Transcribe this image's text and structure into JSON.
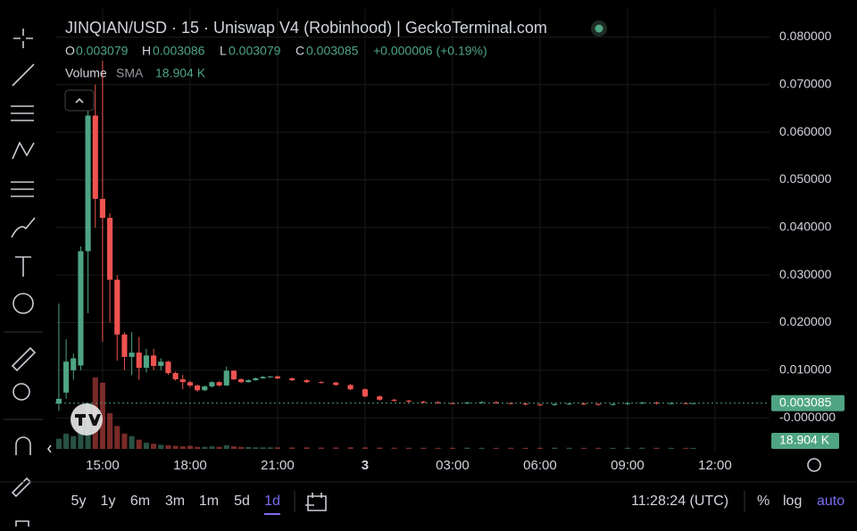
{
  "chart_data": {
    "type": "candlestick",
    "title": "JINQIAN/USD · 15 · Uniswap V4 (Robinhood) | GeckoTerminal.com",
    "up_color": "#4ea483",
    "down_color": "#ef5350",
    "x": [
      13.5,
      13.75,
      14,
      14.25,
      14.5,
      14.75,
      15,
      15.25,
      15.5,
      15.75,
      16,
      16.25,
      16.5,
      16.75,
      17,
      17.25,
      17.5,
      17.75,
      18,
      18.25,
      18.5,
      18.75,
      19,
      19.25,
      19.5,
      19.75,
      20,
      20.25,
      20.5,
      20.75,
      21,
      21.5,
      22,
      22.5,
      23,
      23.5,
      24,
      24.5,
      25,
      25.5,
      26,
      26.5,
      27,
      27.5,
      28,
      28.5,
      29,
      29.5,
      30,
      30.5,
      31,
      31.5,
      32,
      32.5,
      33,
      33.5,
      34,
      34.5,
      35,
      35.25
    ],
    "open": [
      0.003,
      0.0053,
      0.01,
      0.011,
      0.035,
      0.0635,
      0.046,
      0.042,
      0.029,
      0.0175,
      0.0128,
      0.0137,
      0.0105,
      0.0131,
      0.0109,
      0.0118,
      0.0094,
      0.0081,
      0.0075,
      0.0068,
      0.0058,
      0.0066,
      0.0075,
      0.0068,
      0.0099,
      0.0081,
      0.0075,
      0.0079,
      0.0083,
      0.0086,
      0.0087,
      0.0083,
      0.0079,
      0.0075,
      0.0074,
      0.0069,
      0.006,
      0.0045,
      0.0038,
      0.0036,
      0.0034,
      0.0033,
      0.0031,
      0.00305,
      0.0032,
      0.0033,
      0.0031,
      0.003,
      0.0028,
      0.0027,
      0.0029,
      0.003,
      0.0029,
      0.0028,
      0.0029,
      0.0031,
      0.0032,
      0.003,
      0.0031,
      0.003079
    ],
    "high": [
      0.024,
      0.0165,
      0.0135,
      0.036,
      0.066,
      0.07,
      0.075,
      0.043,
      0.03,
      0.018,
      0.018,
      0.017,
      0.0145,
      0.0145,
      0.0125,
      0.012,
      0.0097,
      0.009,
      0.0078,
      0.007,
      0.0068,
      0.0077,
      0.0077,
      0.0108,
      0.01,
      0.0083,
      0.0081,
      0.0085,
      0.0088,
      0.0088,
      0.0089,
      0.0085,
      0.0081,
      0.0077,
      0.0076,
      0.0071,
      0.0062,
      0.0047,
      0.004,
      0.0038,
      0.0036,
      0.0035,
      0.0033,
      0.0034,
      0.0035,
      0.0035,
      0.0033,
      0.0032,
      0.003,
      0.0031,
      0.0032,
      0.0032,
      0.0031,
      0.0031,
      0.0033,
      0.0034,
      0.0034,
      0.0033,
      0.0033,
      0.003086
    ],
    "low": [
      0.0015,
      0.004,
      0.008,
      0.01,
      0.022,
      0.04,
      0.016,
      0.02,
      0.012,
      0.01,
      0.009,
      0.008,
      0.0095,
      0.01,
      0.01,
      0.009,
      0.0078,
      0.006,
      0.0064,
      0.0055,
      0.0056,
      0.0064,
      0.0066,
      0.0067,
      0.0079,
      0.0073,
      0.0074,
      0.0078,
      0.0082,
      0.0084,
      0.0081,
      0.0077,
      0.0073,
      0.0072,
      0.0067,
      0.0058,
      0.0043,
      0.0036,
      0.0034,
      0.0032,
      0.0031,
      0.0029,
      0.0029,
      0.0029,
      0.003,
      0.0029,
      0.0028,
      0.0026,
      0.0025,
      0.0025,
      0.0027,
      0.0027,
      0.0026,
      0.0026,
      0.0027,
      0.0029,
      0.0028,
      0.0028,
      0.0029,
      0.003079
    ],
    "close": [
      0.004,
      0.0118,
      0.0125,
      0.035,
      0.0635,
      0.046,
      0.042,
      0.029,
      0.0175,
      0.0128,
      0.0137,
      0.0105,
      0.0131,
      0.0109,
      0.0118,
      0.0094,
      0.0081,
      0.0075,
      0.0068,
      0.0058,
      0.0066,
      0.0075,
      0.0068,
      0.0099,
      0.0081,
      0.0075,
      0.0079,
      0.0083,
      0.0086,
      0.0087,
      0.0083,
      0.0079,
      0.0075,
      0.0074,
      0.0069,
      0.006,
      0.0045,
      0.0038,
      0.0036,
      0.0034,
      0.0033,
      0.0031,
      0.00305,
      0.0032,
      0.0033,
      0.0031,
      0.003,
      0.0028,
      0.0027,
      0.0029,
      0.003,
      0.0029,
      0.0028,
      0.0029,
      0.0031,
      0.0032,
      0.003,
      0.0031,
      0.003079,
      0.003085
    ],
    "volume": [
      200000,
      300000,
      250000,
      500000,
      900000,
      1400000,
      1300000,
      700000,
      450000,
      300000,
      250000,
      180000,
      120000,
      100000,
      80000,
      70000,
      60000,
      50000,
      60000,
      40000,
      40000,
      50000,
      40000,
      70000,
      50000,
      40000,
      35000,
      30000,
      30000,
      30000,
      30000,
      28000,
      30000,
      26000,
      28000,
      32000,
      30000,
      26000,
      24000,
      22000,
      22000,
      20000,
      22000,
      24000,
      22000,
      20000,
      22000,
      20000,
      22000,
      24000,
      22000,
      20000,
      22000,
      20000,
      22000,
      24000,
      22000,
      20000,
      20000,
      18904
    ],
    "xlim": [
      13.38,
      37.87
    ],
    "xticks": [
      {
        "value": 15,
        "label": "15:00"
      },
      {
        "value": 18,
        "label": "18:00"
      },
      {
        "value": 21,
        "label": "21:00"
      },
      {
        "value": 24,
        "label": "3"
      },
      {
        "value": 27,
        "label": "03:00"
      },
      {
        "value": 30,
        "label": "06:00"
      },
      {
        "value": 33,
        "label": "09:00"
      },
      {
        "value": 36,
        "label": "12:00"
      }
    ],
    "ylim": [
      -0.0069,
      0.0859
    ],
    "yticks": [
      {
        "value": 0.08,
        "label": "0.080000"
      },
      {
        "value": 0.07,
        "label": "0.070000"
      },
      {
        "value": 0.06,
        "label": "0.060000"
      },
      {
        "value": 0.05,
        "label": "0.050000"
      },
      {
        "value": 0.04,
        "label": "0.040000"
      },
      {
        "value": 0.03,
        "label": "0.030000"
      },
      {
        "value": 0.02,
        "label": "0.020000"
      },
      {
        "value": 0.01,
        "label": "0.010000"
      },
      {
        "value": 0,
        "label": "-0.000000"
      }
    ],
    "grid": true
  },
  "legend": {
    "o": "O",
    "o_value": "0.003079",
    "h": "H",
    "h_value": "0.003086",
    "l": "L",
    "l_value": "0.003079",
    "c": "C",
    "c_value": "0.003085",
    "change": "+0.000006 (+0.19%)",
    "volume": "Volume",
    "sma": "SMA",
    "volume_value": "18.904 K"
  },
  "toolbar": {
    "ranges": [
      "5y",
      "1y",
      "6m",
      "3m",
      "1m",
      "5d",
      "1d"
    ],
    "clock": "11:28:24 (UTC)",
    "percent": "%",
    "log": "log",
    "auto": "auto"
  }
}
